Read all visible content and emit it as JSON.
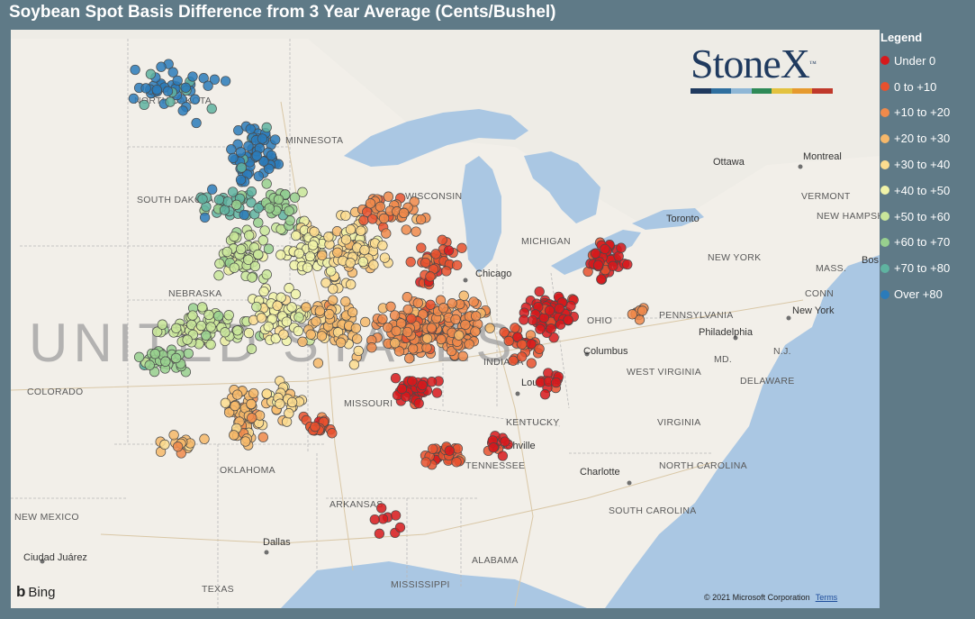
{
  "title": "Soybean Spot Basis Difference from 3 Year Average (Cents/Bushel)",
  "legend": {
    "title": "Legend",
    "items": [
      {
        "label": "Under 0",
        "color": "#d7191c"
      },
      {
        "label": "0 to +10",
        "color": "#e8512e"
      },
      {
        "label": "+10 to +20",
        "color": "#f08a4b"
      },
      {
        "label": "+20 to +30",
        "color": "#f6b86a"
      },
      {
        "label": "+30 to +40",
        "color": "#fbdc8f"
      },
      {
        "label": "+40 to +50",
        "color": "#f1f3a8"
      },
      {
        "label": "+50 to +60",
        "color": "#c9e69a"
      },
      {
        "label": "+60 to +70",
        "color": "#98d08e"
      },
      {
        "label": "+70 to +80",
        "color": "#5fb3a0"
      },
      {
        "label": "Over +80",
        "color": "#2b7bba"
      }
    ]
  },
  "logo": {
    "text": "StoneX",
    "tm": "™",
    "bar_colors": [
      "#1f3a5f",
      "#2f6f9f",
      "#8fb7d6",
      "#2e8a57",
      "#e3c23f",
      "#e69a2e",
      "#c0392b"
    ]
  },
  "attribution": {
    "brand": "Bing",
    "copyright": "© 2021 Microsoft Corporation",
    "terms": "Terms"
  },
  "map": {
    "country_label": "UNITED STATES",
    "states": {
      "north_dakota": "NORTH DAKOTA",
      "minnesota": "MINNESOTA",
      "south_dakota": "SOUTH DAKOTA",
      "nebraska": "NEBRASKA",
      "colorado": "COLORADO",
      "missouri": "MISSOURI",
      "oklahoma": "OKLAHOMA",
      "arkansas": "ARKANSAS",
      "new_mexico": "NEW MEXICO",
      "texas": "TEXAS",
      "mississippi": "MISSISSIPPI",
      "alabama": "ALABAMA",
      "tennessee": "TENNESSEE",
      "kentucky": "KENTUCKY",
      "indiana": "INDIANA",
      "wisconsin": "WISCONSIN",
      "michigan": "MICHIGAN",
      "ohio": "OHIO",
      "west_virginia": "WEST VIRGINIA",
      "virginia": "VIRGINIA",
      "pennsylvania": "PENNSYLVANIA",
      "new_york": "NEW YORK",
      "north_carolina": "NORTH CAROLINA",
      "south_carolina": "SOUTH CAROLINA",
      "md": "MD.",
      "nj": "N.J.",
      "delaware": "DELAWARE",
      "vermont": "VERMONT",
      "new_hampshire": "NEW HAMPSHIRE",
      "mass": "MASS.",
      "conn": "CONN"
    },
    "cities": {
      "chicago": "Chicago",
      "columbus": "Columbus",
      "louisville": "Louisville",
      "nashville": "Nashville",
      "charlotte": "Charlotte",
      "dallas": "Dallas",
      "ciudad_juarez": "Ciudad Juárez",
      "philadelphia": "Philadelphia",
      "new_york_city": "New York",
      "ottawa": "Ottawa",
      "montreal": "Montreal",
      "toronto": "Toronto",
      "boston": "Bos"
    }
  }
}
